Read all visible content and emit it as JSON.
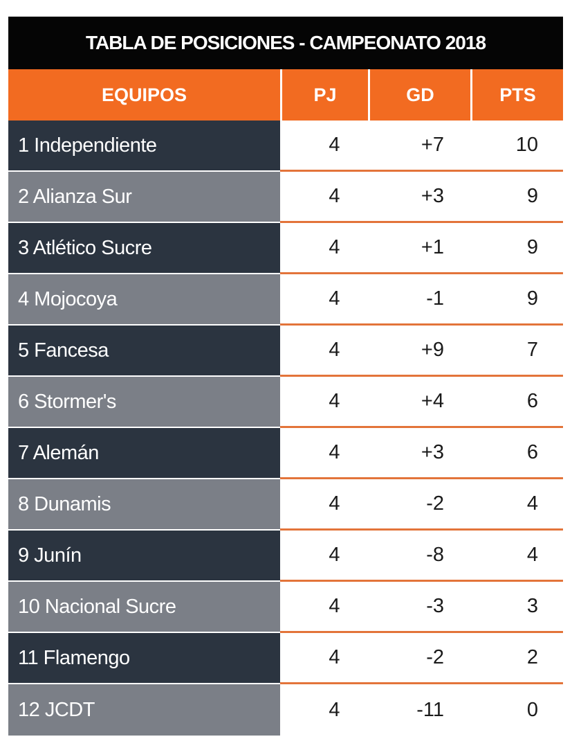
{
  "title": "TABLA DE POSICIONES - CAMPEONATO 2018",
  "headers": {
    "team": "EQUIPOS",
    "pj": "PJ",
    "gd": "GD",
    "pts": "PTS"
  },
  "colors": {
    "header_orange": "#f26b21",
    "title_black": "#050505",
    "row_dark": "#2b3440",
    "row_light": "#7b7f87",
    "divider_orange": "#e3743a"
  },
  "rows": [
    {
      "team": "1 Independiente",
      "pj": "4",
      "gd": "+7",
      "pts": "10"
    },
    {
      "team": "2 Alianza Sur",
      "pj": "4",
      "gd": "+3",
      "pts": "9"
    },
    {
      "team": "3 Atlético Sucre",
      "pj": "4",
      "gd": "+1",
      "pts": "9"
    },
    {
      "team": "4 Mojocoya",
      "pj": "4",
      "gd": "-1",
      "pts": "9"
    },
    {
      "team": "5 Fancesa",
      "pj": "4",
      "gd": "+9",
      "pts": "7"
    },
    {
      "team": "6 Stormer's",
      "pj": "4",
      "gd": "+4",
      "pts": "6"
    },
    {
      "team": "7 Alemán",
      "pj": "4",
      "gd": "+3",
      "pts": "6"
    },
    {
      "team": "8 Dunamis",
      "pj": "4",
      "gd": "-2",
      "pts": "4"
    },
    {
      "team": "9 Junín",
      "pj": "4",
      "gd": "-8",
      "pts": "4"
    },
    {
      "team": "10 Nacional Sucre",
      "pj": "4",
      "gd": "-3",
      "pts": "3"
    },
    {
      "team": "11 Flamengo",
      "pj": "4",
      "gd": "-2",
      "pts": "2"
    },
    {
      "team": "12 JCDT",
      "pj": "4",
      "gd": "-11",
      "pts": "0"
    }
  ]
}
